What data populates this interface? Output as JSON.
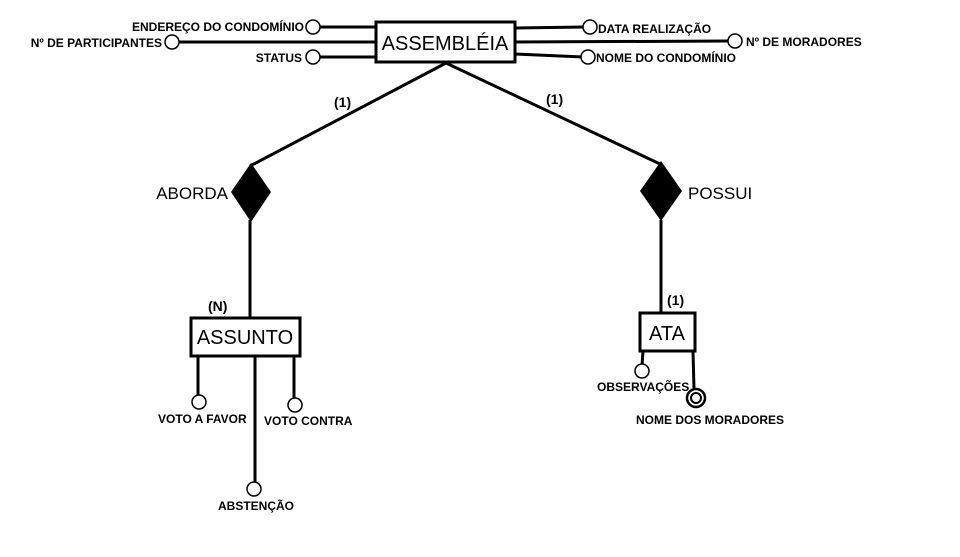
{
  "entities": {
    "assembleia": "ASSEMBLÉIA",
    "assunto": "ASSUNTO",
    "ata": "ATA"
  },
  "relationships": {
    "aborda": "ABORDA",
    "possui": "POSSUI"
  },
  "cardinalities": {
    "assembleia_aborda": "(1)",
    "assembleia_possui": "(1)",
    "aborda_assunto": "(N)",
    "possui_ata": "(1)"
  },
  "attributes": {
    "endereco_condominio": "ENDEREÇO DO CONDOMÍNIO",
    "num_participantes": "Nº DE PARTICIPANTES",
    "status": "STATUS",
    "data_realizacao": "DATA REALIZAÇÃO",
    "num_moradores": "Nº DE MORADORES",
    "nome_condominio": "NOME DO CONDOMÍNIO",
    "voto_a_favor": "VOTO A FAVOR",
    "voto_contra": "VOTO CONTRA",
    "abstencao": "ABSTENÇÃO",
    "observacoes": "OBSERVAÇÕES",
    "nome_dos_moradores": "NOME DOS MORADORES"
  }
}
